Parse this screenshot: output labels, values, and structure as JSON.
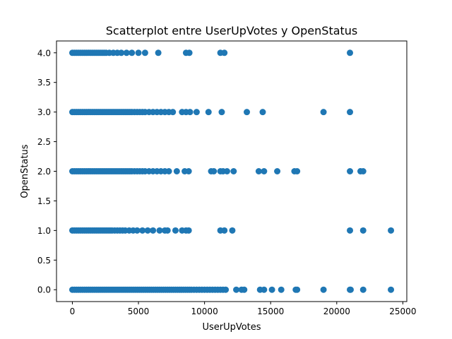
{
  "chart_data": {
    "type": "scatter",
    "title": "Scatterplot entre UserUpVotes y OpenStatus",
    "xlabel": "UserUpVotes",
    "ylabel": "OpenStatus",
    "xlim": [
      -1200,
      25300
    ],
    "ylim": [
      -0.2,
      4.2
    ],
    "xticks": [
      0,
      5000,
      10000,
      15000,
      20000,
      25000
    ],
    "xtick_labels": [
      "0",
      "5000",
      "10000",
      "15000",
      "20000",
      "25000"
    ],
    "yticks": [
      0.0,
      0.5,
      1.0,
      1.5,
      2.0,
      2.5,
      3.0,
      3.5,
      4.0
    ],
    "ytick_labels": [
      "0.0",
      "0.5",
      "1.0",
      "1.5",
      "2.0",
      "2.5",
      "3.0",
      "3.5",
      "4.0"
    ],
    "grid": false,
    "marker_color": "#1f77b4",
    "series": [
      {
        "points": [
          {
            "x": 0,
            "y": 4
          },
          {
            "x": 150,
            "y": 4
          },
          {
            "x": 300,
            "y": 4
          },
          {
            "x": 450,
            "y": 4
          },
          {
            "x": 600,
            "y": 4
          },
          {
            "x": 750,
            "y": 4
          },
          {
            "x": 900,
            "y": 4
          },
          {
            "x": 1050,
            "y": 4
          },
          {
            "x": 1200,
            "y": 4
          },
          {
            "x": 1350,
            "y": 4
          },
          {
            "x": 1500,
            "y": 4
          },
          {
            "x": 1650,
            "y": 4
          },
          {
            "x": 1800,
            "y": 4
          },
          {
            "x": 1950,
            "y": 4
          },
          {
            "x": 2100,
            "y": 4
          },
          {
            "x": 2250,
            "y": 4
          },
          {
            "x": 2400,
            "y": 4
          },
          {
            "x": 2550,
            "y": 4
          },
          {
            "x": 2800,
            "y": 4
          },
          {
            "x": 3100,
            "y": 4
          },
          {
            "x": 3400,
            "y": 4
          },
          {
            "x": 3700,
            "y": 4
          },
          {
            "x": 4100,
            "y": 4
          },
          {
            "x": 4500,
            "y": 4
          },
          {
            "x": 5000,
            "y": 4
          },
          {
            "x": 5500,
            "y": 4
          },
          {
            "x": 6500,
            "y": 4
          },
          {
            "x": 8600,
            "y": 4
          },
          {
            "x": 8850,
            "y": 4
          },
          {
            "x": 11200,
            "y": 4
          },
          {
            "x": 11500,
            "y": 4
          },
          {
            "x": 21000,
            "y": 4
          },
          {
            "x": 0,
            "y": 3
          },
          {
            "x": 150,
            "y": 3
          },
          {
            "x": 300,
            "y": 3
          },
          {
            "x": 450,
            "y": 3
          },
          {
            "x": 600,
            "y": 3
          },
          {
            "x": 750,
            "y": 3
          },
          {
            "x": 900,
            "y": 3
          },
          {
            "x": 1050,
            "y": 3
          },
          {
            "x": 1200,
            "y": 3
          },
          {
            "x": 1350,
            "y": 3
          },
          {
            "x": 1500,
            "y": 3
          },
          {
            "x": 1650,
            "y": 3
          },
          {
            "x": 1800,
            "y": 3
          },
          {
            "x": 1950,
            "y": 3
          },
          {
            "x": 2100,
            "y": 3
          },
          {
            "x": 2250,
            "y": 3
          },
          {
            "x": 2400,
            "y": 3
          },
          {
            "x": 2550,
            "y": 3
          },
          {
            "x": 2700,
            "y": 3
          },
          {
            "x": 2850,
            "y": 3
          },
          {
            "x": 3000,
            "y": 3
          },
          {
            "x": 3150,
            "y": 3
          },
          {
            "x": 3300,
            "y": 3
          },
          {
            "x": 3450,
            "y": 3
          },
          {
            "x": 3600,
            "y": 3
          },
          {
            "x": 3750,
            "y": 3
          },
          {
            "x": 3900,
            "y": 3
          },
          {
            "x": 4050,
            "y": 3
          },
          {
            "x": 4200,
            "y": 3
          },
          {
            "x": 4350,
            "y": 3
          },
          {
            "x": 4500,
            "y": 3
          },
          {
            "x": 4700,
            "y": 3
          },
          {
            "x": 4900,
            "y": 3
          },
          {
            "x": 5100,
            "y": 3
          },
          {
            "x": 5300,
            "y": 3
          },
          {
            "x": 5500,
            "y": 3
          },
          {
            "x": 5800,
            "y": 3
          },
          {
            "x": 6100,
            "y": 3
          },
          {
            "x": 6400,
            "y": 3
          },
          {
            "x": 6700,
            "y": 3
          },
          {
            "x": 7000,
            "y": 3
          },
          {
            "x": 7300,
            "y": 3
          },
          {
            "x": 7600,
            "y": 3
          },
          {
            "x": 8300,
            "y": 3
          },
          {
            "x": 8600,
            "y": 3
          },
          {
            "x": 8900,
            "y": 3
          },
          {
            "x": 9400,
            "y": 3
          },
          {
            "x": 10300,
            "y": 3
          },
          {
            "x": 11300,
            "y": 3
          },
          {
            "x": 13200,
            "y": 3
          },
          {
            "x": 14400,
            "y": 3
          },
          {
            "x": 19000,
            "y": 3
          },
          {
            "x": 21000,
            "y": 3
          },
          {
            "x": 0,
            "y": 2
          },
          {
            "x": 150,
            "y": 2
          },
          {
            "x": 300,
            "y": 2
          },
          {
            "x": 450,
            "y": 2
          },
          {
            "x": 600,
            "y": 2
          },
          {
            "x": 750,
            "y": 2
          },
          {
            "x": 900,
            "y": 2
          },
          {
            "x": 1050,
            "y": 2
          },
          {
            "x": 1200,
            "y": 2
          },
          {
            "x": 1350,
            "y": 2
          },
          {
            "x": 1500,
            "y": 2
          },
          {
            "x": 1650,
            "y": 2
          },
          {
            "x": 1800,
            "y": 2
          },
          {
            "x": 1950,
            "y": 2
          },
          {
            "x": 2100,
            "y": 2
          },
          {
            "x": 2250,
            "y": 2
          },
          {
            "x": 2400,
            "y": 2
          },
          {
            "x": 2550,
            "y": 2
          },
          {
            "x": 2700,
            "y": 2
          },
          {
            "x": 2850,
            "y": 2
          },
          {
            "x": 3000,
            "y": 2
          },
          {
            "x": 3150,
            "y": 2
          },
          {
            "x": 3300,
            "y": 2
          },
          {
            "x": 3450,
            "y": 2
          },
          {
            "x": 3600,
            "y": 2
          },
          {
            "x": 3750,
            "y": 2
          },
          {
            "x": 3900,
            "y": 2
          },
          {
            "x": 4050,
            "y": 2
          },
          {
            "x": 4200,
            "y": 2
          },
          {
            "x": 4350,
            "y": 2
          },
          {
            "x": 4500,
            "y": 2
          },
          {
            "x": 4700,
            "y": 2
          },
          {
            "x": 4900,
            "y": 2
          },
          {
            "x": 5100,
            "y": 2
          },
          {
            "x": 5300,
            "y": 2
          },
          {
            "x": 5500,
            "y": 2
          },
          {
            "x": 5800,
            "y": 2
          },
          {
            "x": 6100,
            "y": 2
          },
          {
            "x": 6400,
            "y": 2
          },
          {
            "x": 6700,
            "y": 2
          },
          {
            "x": 7000,
            "y": 2
          },
          {
            "x": 7300,
            "y": 2
          },
          {
            "x": 7900,
            "y": 2
          },
          {
            "x": 8500,
            "y": 2
          },
          {
            "x": 8800,
            "y": 2
          },
          {
            "x": 10500,
            "y": 2
          },
          {
            "x": 10700,
            "y": 2
          },
          {
            "x": 11200,
            "y": 2
          },
          {
            "x": 11400,
            "y": 2
          },
          {
            "x": 11700,
            "y": 2
          },
          {
            "x": 12200,
            "y": 2
          },
          {
            "x": 14100,
            "y": 2
          },
          {
            "x": 14500,
            "y": 2
          },
          {
            "x": 15500,
            "y": 2
          },
          {
            "x": 16800,
            "y": 2
          },
          {
            "x": 17000,
            "y": 2
          },
          {
            "x": 21000,
            "y": 2
          },
          {
            "x": 21800,
            "y": 2
          },
          {
            "x": 22000,
            "y": 2
          },
          {
            "x": 0,
            "y": 1
          },
          {
            "x": 150,
            "y": 1
          },
          {
            "x": 300,
            "y": 1
          },
          {
            "x": 450,
            "y": 1
          },
          {
            "x": 600,
            "y": 1
          },
          {
            "x": 750,
            "y": 1
          },
          {
            "x": 900,
            "y": 1
          },
          {
            "x": 1050,
            "y": 1
          },
          {
            "x": 1200,
            "y": 1
          },
          {
            "x": 1350,
            "y": 1
          },
          {
            "x": 1500,
            "y": 1
          },
          {
            "x": 1650,
            "y": 1
          },
          {
            "x": 1800,
            "y": 1
          },
          {
            "x": 1950,
            "y": 1
          },
          {
            "x": 2100,
            "y": 1
          },
          {
            "x": 2250,
            "y": 1
          },
          {
            "x": 2400,
            "y": 1
          },
          {
            "x": 2550,
            "y": 1
          },
          {
            "x": 2700,
            "y": 1
          },
          {
            "x": 2850,
            "y": 1
          },
          {
            "x": 3000,
            "y": 1
          },
          {
            "x": 3200,
            "y": 1
          },
          {
            "x": 3400,
            "y": 1
          },
          {
            "x": 3600,
            "y": 1
          },
          {
            "x": 3800,
            "y": 1
          },
          {
            "x": 4000,
            "y": 1
          },
          {
            "x": 4300,
            "y": 1
          },
          {
            "x": 4600,
            "y": 1
          },
          {
            "x": 4900,
            "y": 1
          },
          {
            "x": 5300,
            "y": 1
          },
          {
            "x": 5700,
            "y": 1
          },
          {
            "x": 6100,
            "y": 1
          },
          {
            "x": 6600,
            "y": 1
          },
          {
            "x": 7000,
            "y": 1
          },
          {
            "x": 7200,
            "y": 1
          },
          {
            "x": 7800,
            "y": 1
          },
          {
            "x": 8300,
            "y": 1
          },
          {
            "x": 8600,
            "y": 1
          },
          {
            "x": 8800,
            "y": 1
          },
          {
            "x": 11200,
            "y": 1
          },
          {
            "x": 11500,
            "y": 1
          },
          {
            "x": 12100,
            "y": 1
          },
          {
            "x": 21000,
            "y": 1
          },
          {
            "x": 22000,
            "y": 1
          },
          {
            "x": 24100,
            "y": 1
          },
          {
            "x": 0,
            "y": 0
          },
          {
            "x": 150,
            "y": 0
          },
          {
            "x": 300,
            "y": 0
          },
          {
            "x": 450,
            "y": 0
          },
          {
            "x": 600,
            "y": 0
          },
          {
            "x": 750,
            "y": 0
          },
          {
            "x": 900,
            "y": 0
          },
          {
            "x": 1050,
            "y": 0
          },
          {
            "x": 1200,
            "y": 0
          },
          {
            "x": 1350,
            "y": 0
          },
          {
            "x": 1500,
            "y": 0
          },
          {
            "x": 1650,
            "y": 0
          },
          {
            "x": 1800,
            "y": 0
          },
          {
            "x": 1950,
            "y": 0
          },
          {
            "x": 2100,
            "y": 0
          },
          {
            "x": 2250,
            "y": 0
          },
          {
            "x": 2400,
            "y": 0
          },
          {
            "x": 2550,
            "y": 0
          },
          {
            "x": 2700,
            "y": 0
          },
          {
            "x": 2850,
            "y": 0
          },
          {
            "x": 3000,
            "y": 0
          },
          {
            "x": 3150,
            "y": 0
          },
          {
            "x": 3300,
            "y": 0
          },
          {
            "x": 3450,
            "y": 0
          },
          {
            "x": 3600,
            "y": 0
          },
          {
            "x": 3750,
            "y": 0
          },
          {
            "x": 3900,
            "y": 0
          },
          {
            "x": 4050,
            "y": 0
          },
          {
            "x": 4200,
            "y": 0
          },
          {
            "x": 4350,
            "y": 0
          },
          {
            "x": 4500,
            "y": 0
          },
          {
            "x": 4650,
            "y": 0
          },
          {
            "x": 4800,
            "y": 0
          },
          {
            "x": 4950,
            "y": 0
          },
          {
            "x": 5100,
            "y": 0
          },
          {
            "x": 5250,
            "y": 0
          },
          {
            "x": 5400,
            "y": 0
          },
          {
            "x": 5550,
            "y": 0
          },
          {
            "x": 5700,
            "y": 0
          },
          {
            "x": 5850,
            "y": 0
          },
          {
            "x": 6000,
            "y": 0
          },
          {
            "x": 6150,
            "y": 0
          },
          {
            "x": 6300,
            "y": 0
          },
          {
            "x": 6450,
            "y": 0
          },
          {
            "x": 6600,
            "y": 0
          },
          {
            "x": 6750,
            "y": 0
          },
          {
            "x": 6900,
            "y": 0
          },
          {
            "x": 7050,
            "y": 0
          },
          {
            "x": 7200,
            "y": 0
          },
          {
            "x": 7350,
            "y": 0
          },
          {
            "x": 7500,
            "y": 0
          },
          {
            "x": 7650,
            "y": 0
          },
          {
            "x": 7800,
            "y": 0
          },
          {
            "x": 7950,
            "y": 0
          },
          {
            "x": 8100,
            "y": 0
          },
          {
            "x": 8250,
            "y": 0
          },
          {
            "x": 8400,
            "y": 0
          },
          {
            "x": 8550,
            "y": 0
          },
          {
            "x": 8700,
            "y": 0
          },
          {
            "x": 8850,
            "y": 0
          },
          {
            "x": 9000,
            "y": 0
          },
          {
            "x": 9200,
            "y": 0
          },
          {
            "x": 9400,
            "y": 0
          },
          {
            "x": 9600,
            "y": 0
          },
          {
            "x": 9800,
            "y": 0
          },
          {
            "x": 10000,
            "y": 0
          },
          {
            "x": 10200,
            "y": 0
          },
          {
            "x": 10400,
            "y": 0
          },
          {
            "x": 10600,
            "y": 0
          },
          {
            "x": 10800,
            "y": 0
          },
          {
            "x": 11000,
            "y": 0
          },
          {
            "x": 11200,
            "y": 0
          },
          {
            "x": 11400,
            "y": 0
          },
          {
            "x": 11600,
            "y": 0
          },
          {
            "x": 12400,
            "y": 0
          },
          {
            "x": 12800,
            "y": 0
          },
          {
            "x": 13000,
            "y": 0
          },
          {
            "x": 14200,
            "y": 0
          },
          {
            "x": 14500,
            "y": 0
          },
          {
            "x": 15100,
            "y": 0
          },
          {
            "x": 15800,
            "y": 0
          },
          {
            "x": 16900,
            "y": 0
          },
          {
            "x": 17000,
            "y": 0
          },
          {
            "x": 19000,
            "y": 0
          },
          {
            "x": 21000,
            "y": 0
          },
          {
            "x": 21050,
            "y": 0
          },
          {
            "x": 22000,
            "y": 0
          },
          {
            "x": 24100,
            "y": 0
          }
        ]
      }
    ]
  }
}
